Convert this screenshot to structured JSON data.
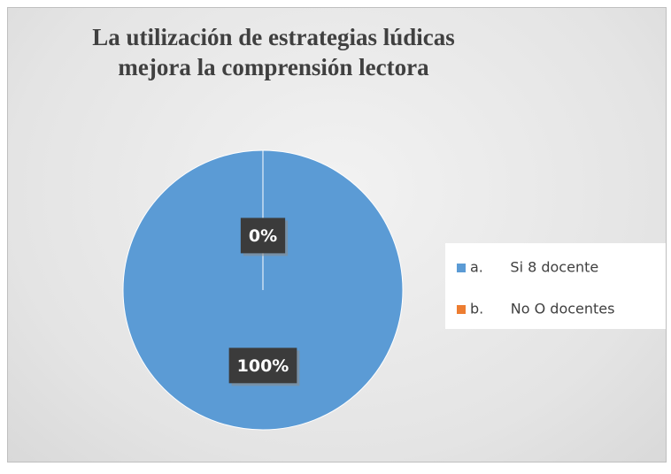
{
  "chart_data": {
    "type": "pie",
    "title": "La utilización de estrategias lúdicas\nmejora la comprensión lectora",
    "categories": [
      "a.      Si 8 docente",
      "b.      No O docentes"
    ],
    "values": [
      100,
      0
    ],
    "value_labels": [
      "100%",
      "0%"
    ],
    "colors": [
      "#5b9bd5",
      "#ed7d31"
    ],
    "legend": "right"
  }
}
